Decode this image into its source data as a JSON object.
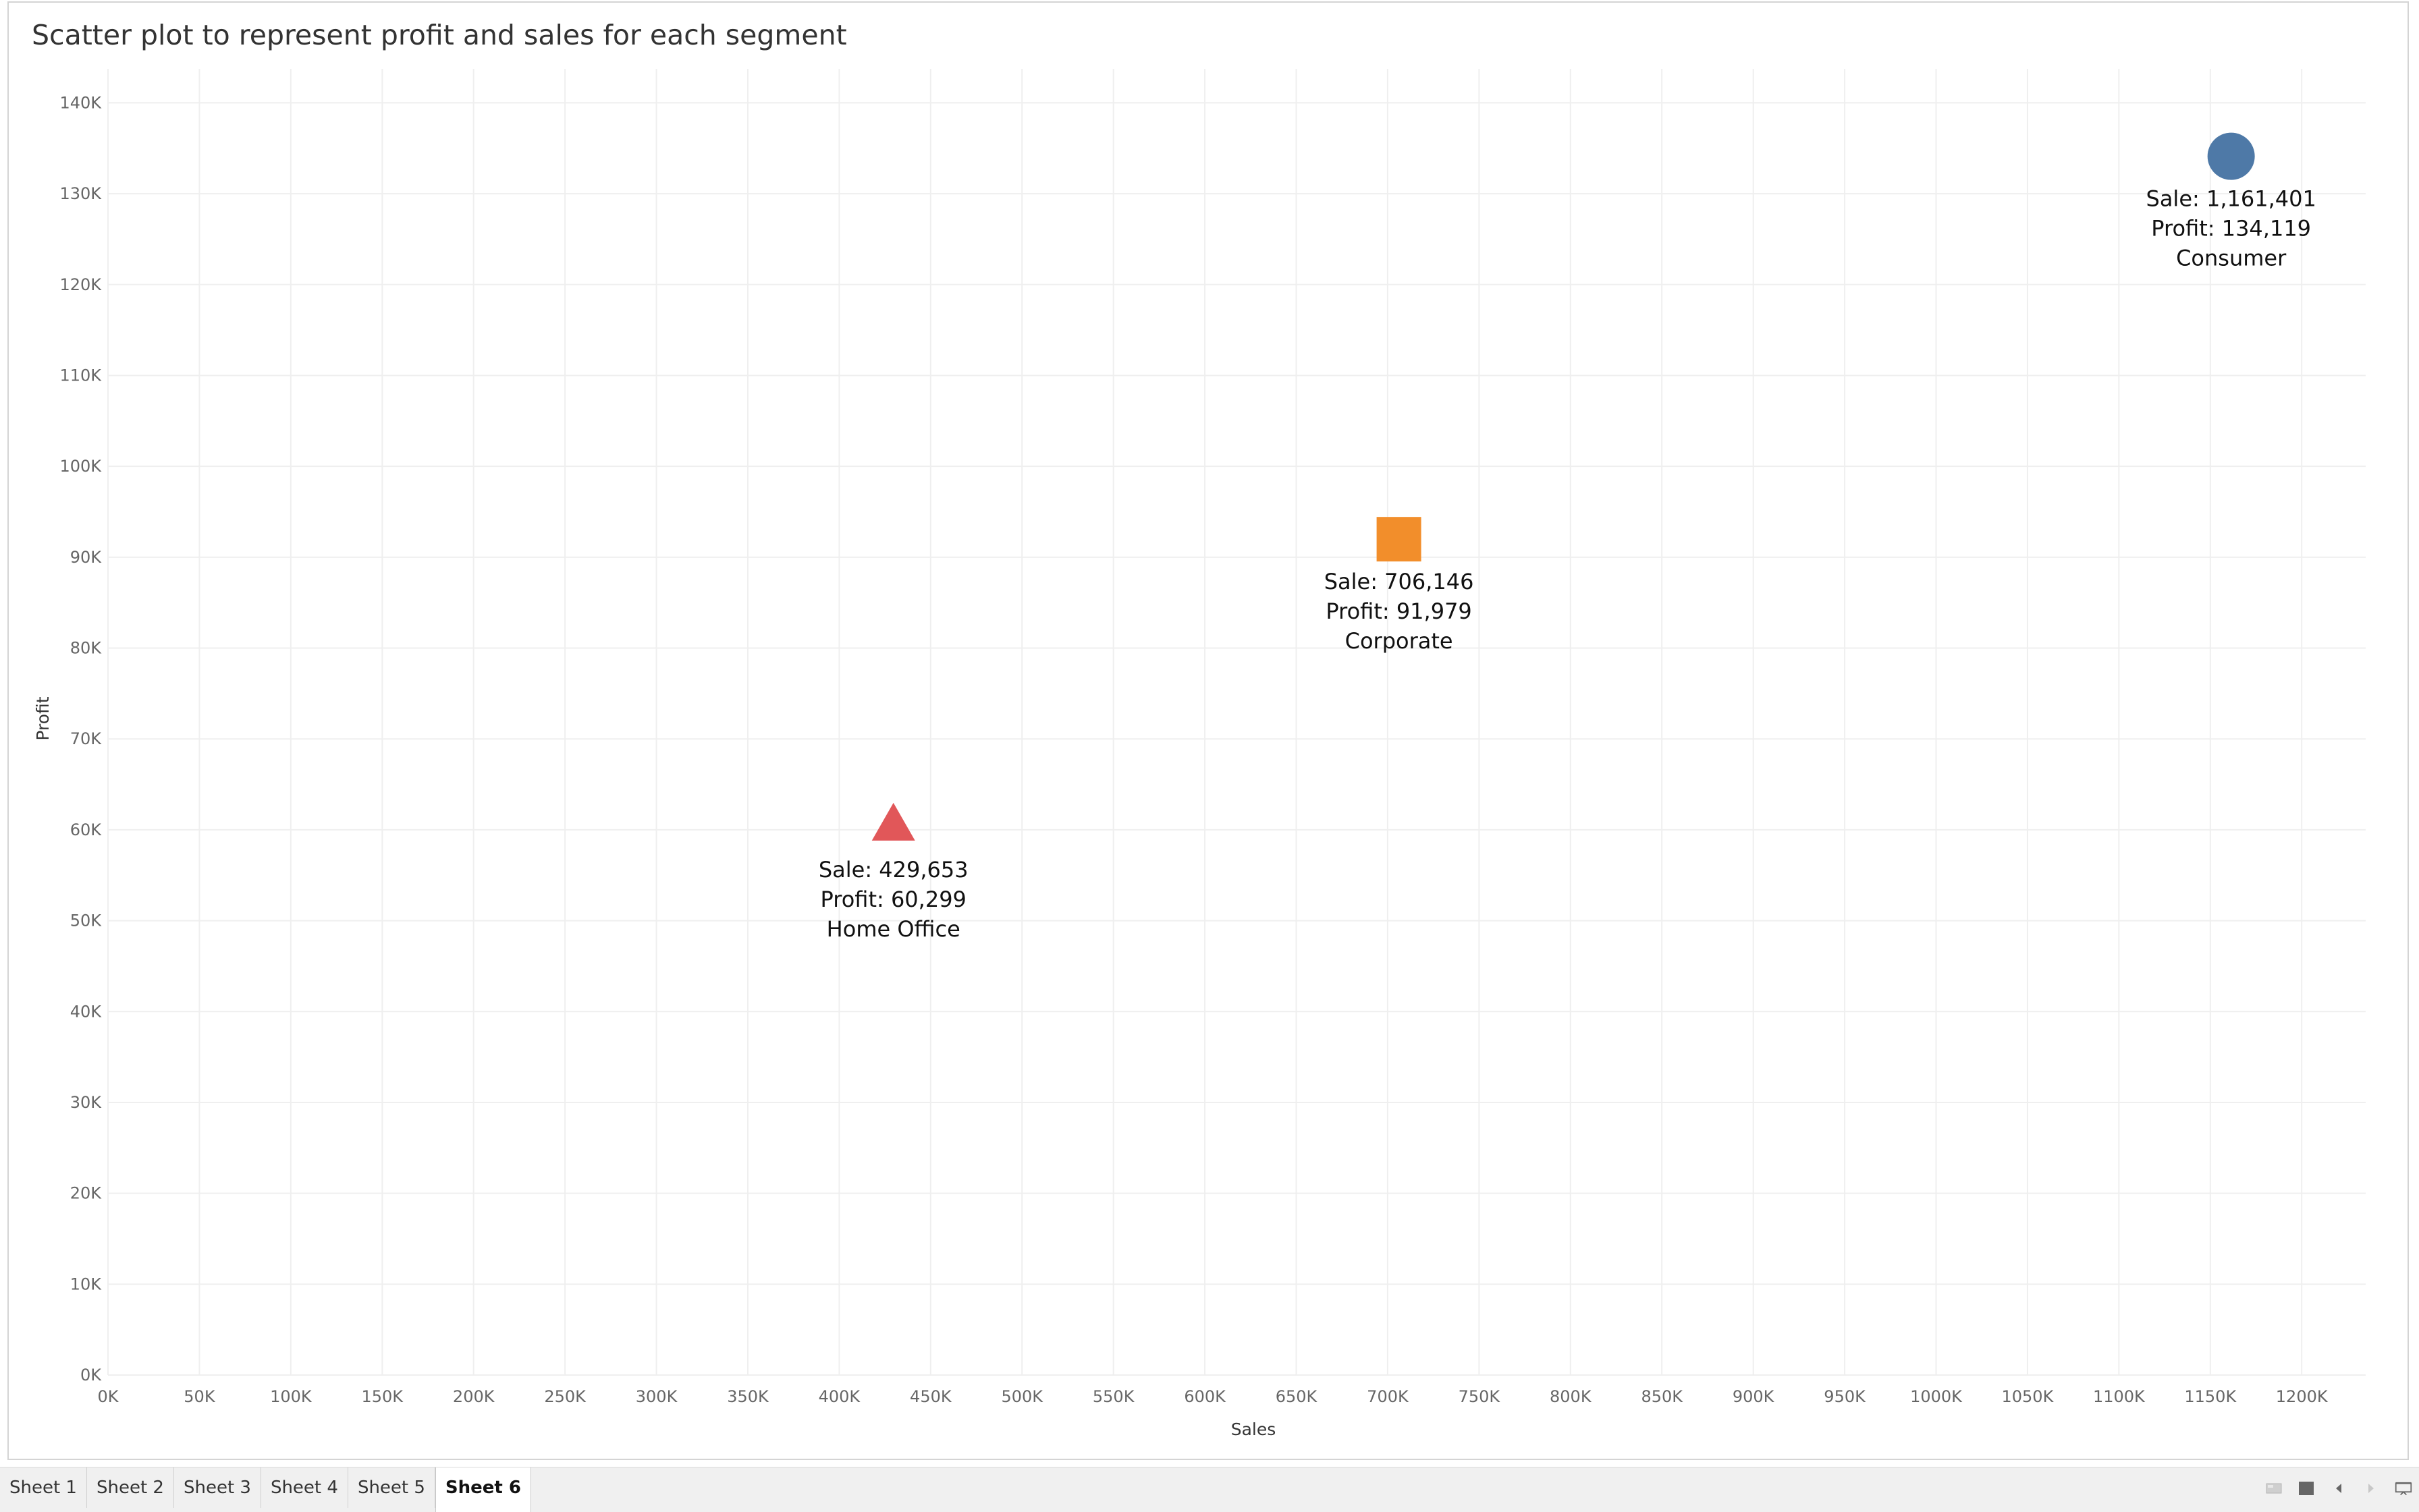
{
  "chart_data": {
    "type": "scatter",
    "title": "Scatter plot to represent profit and sales for each segment",
    "xlabel": "Sales",
    "ylabel": "Profit",
    "xlim": [
      0,
      1235000
    ],
    "ylim": [
      0,
      143000
    ],
    "x_ticks": [
      0,
      50000,
      100000,
      150000,
      200000,
      250000,
      300000,
      350000,
      400000,
      450000,
      500000,
      550000,
      600000,
      650000,
      700000,
      750000,
      800000,
      850000,
      900000,
      950000,
      1000000,
      1050000,
      1100000,
      1150000,
      1200000
    ],
    "x_tick_labels": [
      "0K",
      "50K",
      "100K",
      "150K",
      "200K",
      "250K",
      "300K",
      "350K",
      "400K",
      "450K",
      "500K",
      "550K",
      "600K",
      "650K",
      "700K",
      "750K",
      "800K",
      "850K",
      "900K",
      "950K",
      "1000K",
      "1050K",
      "1100K",
      "1150K",
      "1200K"
    ],
    "y_ticks": [
      0,
      10000,
      20000,
      30000,
      40000,
      50000,
      60000,
      70000,
      80000,
      90000,
      100000,
      110000,
      120000,
      130000,
      140000
    ],
    "y_tick_labels": [
      "0K",
      "10K",
      "20K",
      "30K",
      "40K",
      "50K",
      "60K",
      "70K",
      "80K",
      "90K",
      "100K",
      "110K",
      "120K",
      "130K",
      "140K"
    ],
    "grid": true,
    "points": [
      {
        "segment": "Consumer",
        "x": 1161401,
        "y": 134119,
        "shape": "circle",
        "color": "#4e79a7",
        "label_lines": [
          "Sale: 1,161,401",
          "Profit: 134,119",
          "Consumer"
        ]
      },
      {
        "segment": "Corporate",
        "x": 706146,
        "y": 91979,
        "shape": "square",
        "color": "#f28e2b",
        "label_lines": [
          "Sale: 706,146",
          "Profit: 91,979",
          "Corporate"
        ]
      },
      {
        "segment": "Home Office",
        "x": 429653,
        "y": 60299,
        "shape": "triangle",
        "color": "#e15759",
        "label_lines": [
          "Sale: 429,653",
          "Profit: 60,299",
          "Home Office"
        ]
      }
    ]
  },
  "sheet_tabs": [
    {
      "label": "Sheet 1",
      "active": false
    },
    {
      "label": "Sheet 2",
      "active": false
    },
    {
      "label": "Sheet 3",
      "active": false
    },
    {
      "label": "Sheet 4",
      "active": false
    },
    {
      "label": "Sheet 5",
      "active": false
    },
    {
      "label": "Sheet 6",
      "active": true
    }
  ],
  "bottom_controls": [
    {
      "icon": "show-sheets-icon"
    },
    {
      "icon": "filmstrip-icon"
    },
    {
      "icon": "previous-sheet-icon"
    },
    {
      "icon": "next-sheet-icon"
    },
    {
      "icon": "presentation-mode-icon"
    }
  ]
}
